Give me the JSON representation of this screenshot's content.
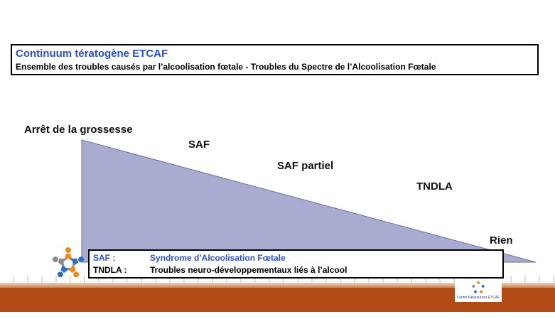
{
  "header": {
    "title": "Continuum tératogène  ETCAF",
    "subtitle": "Ensemble des troubles causés par l’alcoolisation fœtale - Troubles du Spectre de l’Alcoolisation Fœtale"
  },
  "diagram": {
    "labels": {
      "top_left": "Arrêt de la grossesse",
      "saf": "SAF",
      "saf_partiel": "SAF partiel",
      "tndla": "TNDLA",
      "rien": "Rien"
    },
    "colors": {
      "triangle_fill": "#a9acd1",
      "title_blue": "#2c4fc4",
      "ground": "#b24b16"
    }
  },
  "legend": {
    "items": [
      {
        "abbr": "SAF :",
        "definition": "Syndrome d’Alcoolisation Fœtale"
      },
      {
        "abbr": "TNDLA :",
        "definition": "Troubles neuro-développementaux liés à l’alcool"
      }
    ]
  },
  "logos": {
    "left_icon": "people-circle-logo",
    "right_icon": "people-circle-logo",
    "right_text": "Centre Ressources ETCAF"
  }
}
